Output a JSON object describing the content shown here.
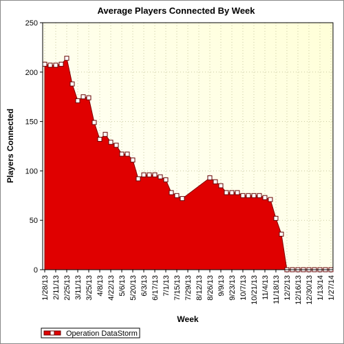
{
  "chart_data": {
    "type": "area",
    "title": "Average Players Connected By Week",
    "x_label": "Week",
    "y_label": "Players Connected",
    "x": [
      "1/28/13",
      "2/4/13",
      "2/11/13",
      "2/18/13",
      "2/25/13",
      "3/4/13",
      "3/11/13",
      "3/18/13",
      "3/25/13",
      "4/1/13",
      "4/8/13",
      "4/15/13",
      "4/22/13",
      "4/29/13",
      "5/6/13",
      "5/13/13",
      "5/20/13",
      "5/27/13",
      "6/3/13",
      "6/10/13",
      "6/17/13",
      "6/24/13",
      "7/1/13",
      "7/8/13",
      "7/15/13",
      "7/22/13",
      "8/26/13",
      "9/2/13",
      "9/9/13",
      "9/16/13",
      "9/23/13",
      "9/30/13",
      "10/7/13",
      "10/14/13",
      "10/21/13",
      "10/28/13",
      "11/4/13",
      "11/11/13",
      "11/18/13",
      "11/25/13",
      "12/2/13",
      "12/9/13",
      "12/16/13",
      "12/23/13",
      "12/30/13",
      "1/6/14",
      "1/13/14",
      "1/20/14",
      "1/27/14"
    ],
    "series": [
      {
        "name": "Operation DataStorm",
        "color": "#e00000",
        "values": [
          208,
          207,
          207,
          208,
          214,
          188,
          171,
          175,
          174,
          149,
          132,
          137,
          129,
          126,
          117,
          117,
          111,
          92,
          96,
          96,
          96,
          94,
          91,
          78,
          75,
          72,
          93,
          89,
          85,
          78,
          78,
          78,
          75,
          75,
          75,
          75,
          73,
          71,
          52,
          36,
          0,
          0,
          0,
          0,
          0,
          0,
          0,
          0,
          0
        ]
      }
    ],
    "xlim": [
      "1/28/13",
      "1/27/14"
    ],
    "xticks": [
      "1/28/13",
      "2/11/13",
      "2/25/13",
      "3/11/13",
      "3/25/13",
      "4/8/13",
      "4/22/13",
      "5/6/13",
      "5/20/13",
      "6/3/13",
      "6/17/13",
      "7/1/13",
      "7/15/13",
      "7/29/13",
      "8/12/13",
      "8/26/13",
      "9/9/13",
      "9/23/13",
      "10/7/13",
      "10/21/13",
      "11/4/13",
      "11/18/13",
      "12/2/13",
      "12/16/13",
      "12/30/13",
      "1/13/14",
      "1/27/14"
    ],
    "ylim": [
      0,
      250
    ],
    "yticks": [
      0,
      50,
      100,
      150,
      200,
      250
    ],
    "grid": true,
    "legend": "bottom-left"
  }
}
